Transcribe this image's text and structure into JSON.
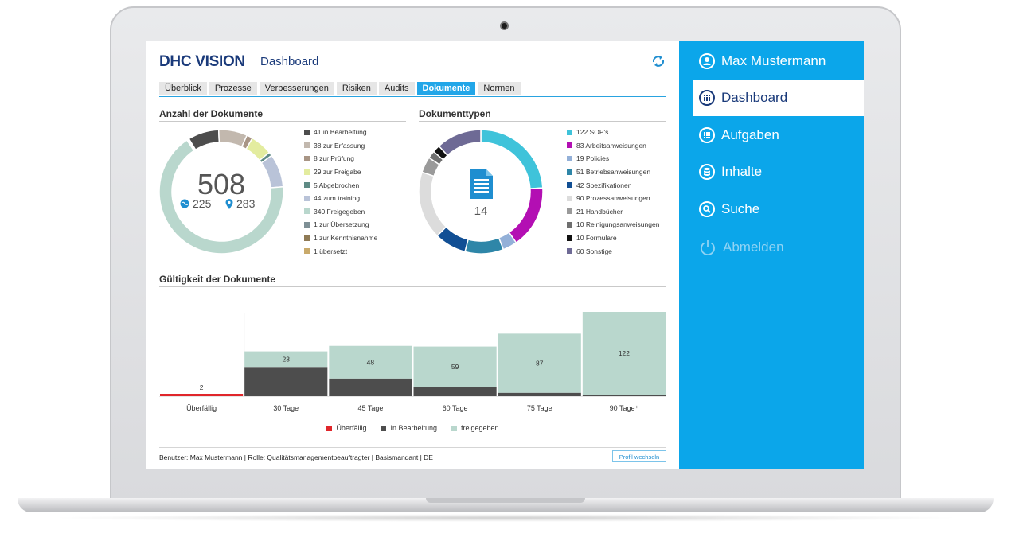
{
  "app": {
    "logo": "DHC VISION",
    "page_title": "Dashboard"
  },
  "tabs": [
    "Überblick",
    "Prozesse",
    "Verbesserungen",
    "Risiken",
    "Audits",
    "Dokumente",
    "Normen"
  ],
  "active_tab": "Dokumente",
  "anzahl": {
    "title": "Anzahl der Dokumente",
    "total": "508",
    "global": "225",
    "local": "283",
    "legend": [
      {
        "label": "41 in Bearbeitung",
        "value": 41,
        "color": "#4d4d4d"
      },
      {
        "label": "38 zur Erfassung",
        "value": 38,
        "color": "#c2b8ae"
      },
      {
        "label": "8 zur Prüfung",
        "value": 8,
        "color": "#a89585"
      },
      {
        "label": "29 zur Freigabe",
        "value": 29,
        "color": "#e3ec9f"
      },
      {
        "label": "5 Abgebrochen",
        "value": 5,
        "color": "#5f8b85"
      },
      {
        "label": "44 zum training",
        "value": 44,
        "color": "#b9c3d8"
      },
      {
        "label": "340 Freigegeben",
        "value": 340,
        "color": "#b9d7cd"
      },
      {
        "label": "1 zur Übersetzung",
        "value": 1,
        "color": "#7e8f95"
      },
      {
        "label": "1 zur Kenntnisnahme",
        "value": 1,
        "color": "#8f7a55"
      },
      {
        "label": "1 übersetzt",
        "value": 1,
        "color": "#c9aa6b"
      }
    ]
  },
  "dokumenttypen": {
    "title": "Dokumenttypen",
    "count": "14",
    "legend": [
      {
        "label": "122 SOP's",
        "value": 122,
        "color": "#3fc3da"
      },
      {
        "label": "83 Arbeitsanweisungen",
        "value": 83,
        "color": "#b30fb3"
      },
      {
        "label": "19 Policies",
        "value": 19,
        "color": "#93b0d8"
      },
      {
        "label": "51 Betriebsanweisungen",
        "value": 51,
        "color": "#2e86a8"
      },
      {
        "label": "42 Spezifikationen",
        "value": 42,
        "color": "#114f94"
      },
      {
        "label": "90 Prozessanweisungen",
        "value": 90,
        "color": "#dcdcdc"
      },
      {
        "label": "21 Handbücher",
        "value": 21,
        "color": "#9a9a9a"
      },
      {
        "label": "10 Reinigungsanweisungen",
        "value": 10,
        "color": "#6f6f6f"
      },
      {
        "label": "10 Formulare",
        "value": 10,
        "color": "#111111"
      },
      {
        "label": "60 Sonstige",
        "value": 60,
        "color": "#6e6a95"
      }
    ]
  },
  "gueltigkeit": {
    "title": "Gültigkeit der Dokumente"
  },
  "chart_data": {
    "type": "bar",
    "title": "Gültigkeit der Dokumente",
    "categories": [
      "Überfällig",
      "30 Tage",
      "45 Tage",
      "60 Tage",
      "75 Tage",
      "90 Tage⁺"
    ],
    "series": [
      {
        "name": "Überfällig",
        "color": "#e0262b",
        "values": [
          2,
          0,
          0,
          0,
          0,
          0
        ]
      },
      {
        "name": "In Bearbeitung",
        "color": "#4d4d4d",
        "values": [
          0,
          43,
          26,
          14,
          5,
          2
        ]
      },
      {
        "name": "freigegeben",
        "color": "#b9d7cd",
        "values": [
          0,
          23,
          48,
          59,
          87,
          122
        ]
      }
    ],
    "stacked": true,
    "legend_position": "bottom"
  },
  "footer": {
    "text": "Benutzer: Max Mustermann | Rolle: Qualitätsmanagementbeauftragter | Basismandant | DE",
    "profile_button": "Profil wechseln"
  },
  "sidebar": {
    "items": [
      {
        "label": "Max Mustermann",
        "icon": "user-icon"
      },
      {
        "label": "Dashboard",
        "icon": "grid-icon"
      },
      {
        "label": "Aufgaben",
        "icon": "list-icon"
      },
      {
        "label": "Inhalte",
        "icon": "database-icon"
      },
      {
        "label": "Suche",
        "icon": "search-icon"
      },
      {
        "label": "Abmelden",
        "icon": "power-icon"
      }
    ],
    "accent": "#0ba6ea"
  }
}
